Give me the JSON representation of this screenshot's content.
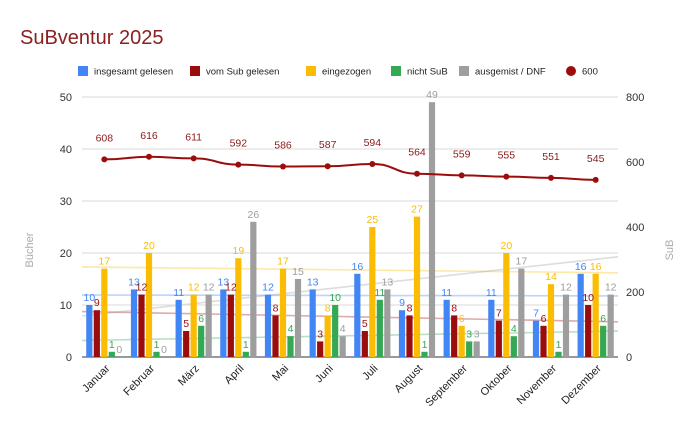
{
  "chart_data": {
    "type": "bar",
    "title": "SuBventur 2025",
    "ylabel": "Bücher",
    "y2label": "SuB",
    "ylim": [
      0,
      50
    ],
    "y2lim": [
      0,
      800
    ],
    "yticks": [
      0,
      10,
      20,
      30,
      40,
      50
    ],
    "y2ticks": [
      0,
      200,
      400,
      600,
      800
    ],
    "grid": true,
    "legend": "top",
    "categories": [
      "Januar",
      "Februar",
      "März",
      "April",
      "Mai",
      "Juni",
      "Juli",
      "August",
      "September",
      "Oktober",
      "November",
      "Dezember"
    ],
    "series": [
      {
        "name": "insgesamt gelesen",
        "color": "#4285f4",
        "values": [
          10,
          13,
          11,
          13,
          12,
          13,
          16,
          9,
          11,
          11,
          7,
          16
        ]
      },
      {
        "name": "vom Sub gelesen",
        "color": "#9b0d0d",
        "values": [
          9,
          12,
          5,
          12,
          8,
          3,
          5,
          8,
          8,
          7,
          6,
          10
        ]
      },
      {
        "name": "eingezogen",
        "color": "#fbbc04",
        "values": [
          17,
          20,
          12,
          19,
          17,
          8,
          25,
          27,
          6,
          20,
          14,
          16
        ]
      },
      {
        "name": "nicht SuB",
        "color": "#34a853",
        "values": [
          1,
          1,
          6,
          1,
          4,
          10,
          11,
          1,
          3,
          4,
          1,
          6
        ]
      },
      {
        "name": "ausgemist / DNF",
        "color": "#9e9e9e",
        "values": [
          0,
          0,
          12,
          26,
          15,
          4,
          13,
          49,
          3,
          17,
          12,
          12
        ]
      }
    ],
    "line_series": {
      "name": "600",
      "color": "#9b0d0d",
      "axis": "right",
      "values": [
        608,
        616,
        611,
        592,
        586,
        587,
        594,
        564,
        559,
        555,
        551,
        545
      ]
    }
  }
}
